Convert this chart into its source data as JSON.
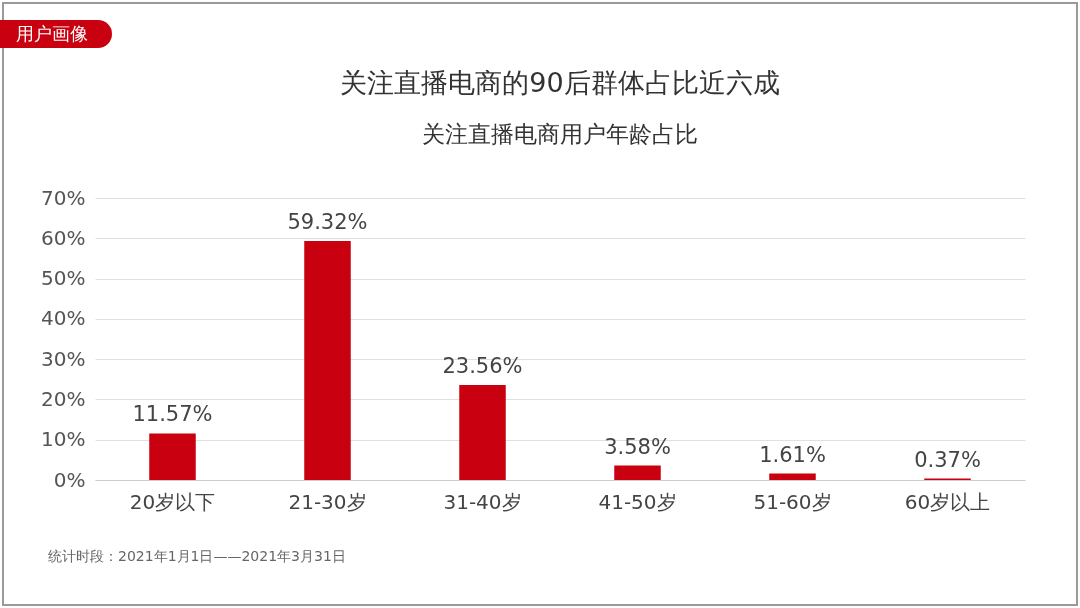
{
  "chart_data": {
    "type": "bar",
    "title": "关注直播电商的90后群体占比近六成",
    "subtitle": "关注直播电商用户年龄占比",
    "categories": [
      "20岁以下",
      "21-30岁",
      "31-40岁",
      "41-50岁",
      "51-60岁",
      "60岁以上"
    ],
    "series": [
      {
        "color": "#c8000f",
        "values": [
          11.57,
          59.32,
          23.56,
          3.58,
          1.61,
          0.37
        ]
      }
    ],
    "value_labels": [
      "11.57%",
      "59.32%",
      "23.56%",
      "3.58%",
      "1.61%",
      "0.37%"
    ],
    "ylim": [
      0,
      70
    ],
    "yticks": [
      {
        "value": 0,
        "label": "0%"
      },
      {
        "value": 10,
        "label": "10%"
      },
      {
        "value": 20,
        "label": "20%"
      },
      {
        "value": 30,
        "label": "30%"
      },
      {
        "value": 40,
        "label": "40%"
      },
      {
        "value": 50,
        "label": "50%"
      },
      {
        "value": 60,
        "label": "60%"
      },
      {
        "value": 70,
        "label": "70%"
      }
    ],
    "grid": "y",
    "annotations": [
      "用户画像",
      "统计时段：2021年1月1日——2021年3月31日"
    ]
  }
}
